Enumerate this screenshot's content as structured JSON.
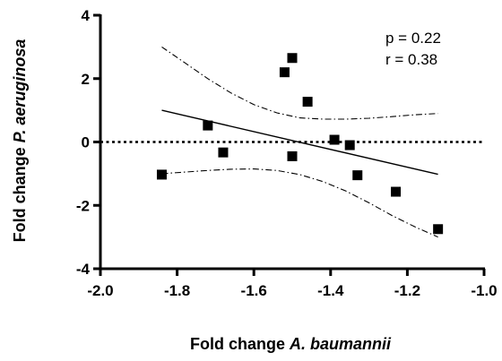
{
  "chart_data": {
    "type": "scatter",
    "xlabel": {
      "prefix": "Fold change ",
      "italic": "A. baumannii"
    },
    "ylabel": {
      "prefix": "Fold change ",
      "italic": "P. aeruginosa"
    },
    "xlim": [
      -2.0,
      -1.0
    ],
    "ylim": [
      -4,
      4
    ],
    "x_ticks": [
      -2.0,
      -1.8,
      -1.6,
      -1.4,
      -1.2,
      -1.0
    ],
    "x_tick_labels": [
      "-2.0",
      "-1.8",
      "-1.6",
      "-1.4",
      "-1.2",
      "-1.0"
    ],
    "y_ticks": [
      -4,
      -2,
      0,
      2,
      4
    ],
    "y_tick_labels": [
      "-4",
      "-2",
      "0",
      "2",
      "4"
    ],
    "annotations": [
      {
        "text": "p = 0.22"
      },
      {
        "text": "r = 0.38"
      }
    ],
    "reference_line_y": 0,
    "points": [
      {
        "x": -1.84,
        "y": -1.03
      },
      {
        "x": -1.72,
        "y": 0.52
      },
      {
        "x": -1.68,
        "y": -0.33
      },
      {
        "x": -1.52,
        "y": 2.2
      },
      {
        "x": -1.5,
        "y": 2.65
      },
      {
        "x": -1.5,
        "y": -0.45
      },
      {
        "x": -1.46,
        "y": 1.27
      },
      {
        "x": -1.39,
        "y": 0.07
      },
      {
        "x": -1.35,
        "y": -0.1
      },
      {
        "x": -1.33,
        "y": -1.05
      },
      {
        "x": -1.23,
        "y": -1.57
      },
      {
        "x": -1.12,
        "y": -2.75
      }
    ],
    "regression_line": [
      {
        "x": -1.84,
        "y": 1.0
      },
      {
        "x": -1.12,
        "y": -1.02
      }
    ],
    "confidence_upper": [
      {
        "x": -1.84,
        "y": 3.0
      },
      {
        "x": -1.78,
        "y": 2.5
      },
      {
        "x": -1.72,
        "y": 2.0
      },
      {
        "x": -1.66,
        "y": 1.55
      },
      {
        "x": -1.6,
        "y": 1.18
      },
      {
        "x": -1.54,
        "y": 0.92
      },
      {
        "x": -1.48,
        "y": 0.76
      },
      {
        "x": -1.42,
        "y": 0.72
      },
      {
        "x": -1.36,
        "y": 0.72
      },
      {
        "x": -1.3,
        "y": 0.75
      },
      {
        "x": -1.24,
        "y": 0.8
      },
      {
        "x": -1.18,
        "y": 0.86
      },
      {
        "x": -1.12,
        "y": 0.9
      }
    ],
    "confidence_lower": [
      {
        "x": -1.84,
        "y": -1.0
      },
      {
        "x": -1.78,
        "y": -0.95
      },
      {
        "x": -1.72,
        "y": -0.9
      },
      {
        "x": -1.66,
        "y": -0.86
      },
      {
        "x": -1.6,
        "y": -0.85
      },
      {
        "x": -1.54,
        "y": -0.9
      },
      {
        "x": -1.48,
        "y": -1.03
      },
      {
        "x": -1.42,
        "y": -1.25
      },
      {
        "x": -1.36,
        "y": -1.55
      },
      {
        "x": -1.3,
        "y": -1.92
      },
      {
        "x": -1.24,
        "y": -2.32
      },
      {
        "x": -1.18,
        "y": -2.68
      },
      {
        "x": -1.12,
        "y": -3.0
      }
    ],
    "grid": false,
    "legend": "none"
  }
}
